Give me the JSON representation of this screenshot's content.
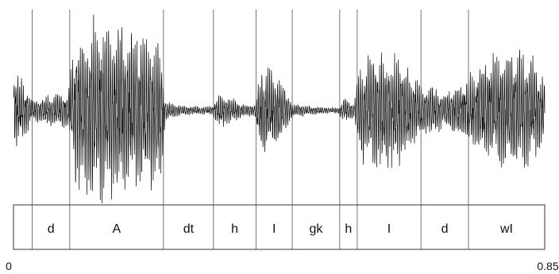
{
  "figure": {
    "time_axis": {
      "start_label": "0",
      "end_label": "0.85",
      "range": [
        0,
        0.85
      ]
    },
    "segments": [
      {
        "label": "",
        "start": 0.0,
        "end": 0.03
      },
      {
        "label": "d",
        "start": 0.03,
        "end": 0.09
      },
      {
        "label": "A",
        "start": 0.09,
        "end": 0.24
      },
      {
        "label": "dt",
        "start": 0.24,
        "end": 0.32
      },
      {
        "label": "h",
        "start": 0.32,
        "end": 0.388
      },
      {
        "label": "I",
        "start": 0.388,
        "end": 0.446
      },
      {
        "label": "gk",
        "start": 0.446,
        "end": 0.522
      },
      {
        "label": "h",
        "start": 0.522,
        "end": 0.55
      },
      {
        "label": "I",
        "start": 0.55,
        "end": 0.652
      },
      {
        "label": "d",
        "start": 0.652,
        "end": 0.728
      },
      {
        "label": "wI",
        "start": 0.728,
        "end": 0.85
      }
    ],
    "colors": {
      "waveform": "#000000",
      "boundary": "#555555",
      "frame": "#333333"
    }
  }
}
